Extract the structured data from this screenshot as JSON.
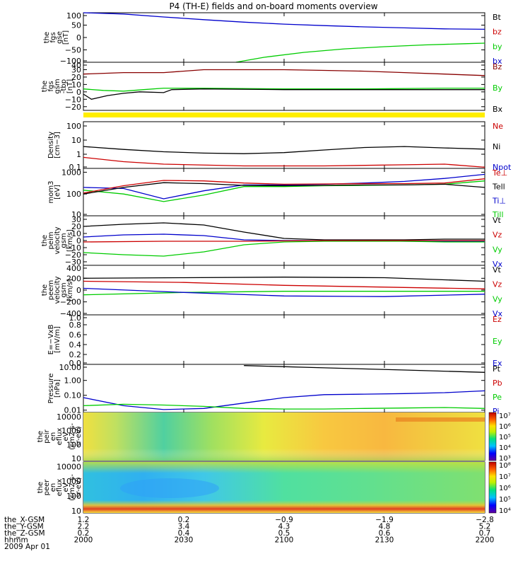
{
  "chart_data": {
    "type": "line",
    "title": "P4 (TH-E) fields and on-board moments overview",
    "time_axis": {
      "range": [
        "2000",
        "2200"
      ],
      "tick_labels": [
        "2000",
        "2030",
        "2100",
        "2130",
        "2200"
      ],
      "date": "2009 Apr 01"
    },
    "panels": [
      {
        "id": "fgs_gse",
        "ylabel": [
          "the",
          "fgs",
          "gse",
          "[nT]"
        ],
        "ticks": [
          "100",
          "50",
          "0",
          "−50",
          "−100"
        ],
        "ylim": [
          -100,
          100
        ],
        "legend": [
          {
            "name": "Bt",
            "color": "#000000"
          },
          {
            "name": "bz",
            "color": "#cc0000"
          },
          {
            "name": "by",
            "color": "#00cc00"
          },
          {
            "name": "bx",
            "color": "#0000cc"
          }
        ],
        "series": [
          {
            "name": "bx",
            "color": "#0000cc",
            "x": [
              0,
              0.1,
              0.2,
              0.3,
              0.4,
              0.5,
              0.6,
              0.7,
              0.8,
              0.9,
              1
            ],
            "y": [
              108,
              95,
              83,
              72,
              62,
              54,
              48,
              43,
              39,
              35,
              33
            ]
          },
          {
            "name": "by",
            "color": "#00cc00",
            "x": [
              0.38,
              0.45,
              0.55,
              0.65,
              0.75,
              0.85,
              0.95,
              1
            ],
            "y": [
              -100,
              -80,
              -60,
              -46,
              -37,
              -30,
              -25,
              -23
            ]
          }
        ]
      },
      {
        "id": "fgs_gsm",
        "ylabel": [
          "the",
          "fgs",
          "gsm",
          "-tbp",
          "[nT]"
        ],
        "ticks": [
          "40",
          "30",
          "20",
          "10",
          "0",
          "−10",
          "−20"
        ],
        "ylim": [
          -25,
          40
        ],
        "legend": [
          {
            "name": "Bz",
            "color": "#880000"
          },
          {
            "name": "By",
            "color": "#00cc00"
          },
          {
            "name": "Bx",
            "color": "#000000"
          }
        ],
        "series": [
          {
            "name": "Bz",
            "color": "#880000",
            "x": [
              0,
              0.1,
              0.2,
              0.3,
              0.4,
              0.5,
              0.6,
              0.7,
              0.8,
              0.9,
              1
            ],
            "y": [
              24,
              26,
              26,
              30,
              30,
              30,
              29,
              28,
              26,
              24,
              22
            ]
          },
          {
            "name": "By",
            "color": "#00cc00",
            "x": [
              0,
              0.05,
              0.1,
              0.15,
              0.2,
              0.3,
              0.5,
              0.7,
              0.9,
              1
            ],
            "y": [
              4,
              2,
              1,
              3,
              5,
              5,
              4,
              4,
              5,
              5
            ]
          },
          {
            "name": "Bx",
            "color": "#000000",
            "x": [
              0,
              0.02,
              0.06,
              0.1,
              0.14,
              0.2,
              0.22,
              0.3,
              0.5,
              0.7,
              0.9,
              1
            ],
            "y": [
              -3,
              -10,
              -5,
              -2,
              0,
              -1,
              3,
              4,
              3,
              3,
              3,
              3
            ]
          }
        ]
      },
      {
        "id": "density",
        "ylabel": [
          "Density",
          "[cm−3]"
        ],
        "ticks": [
          "100",
          "10",
          "1",
          "0.1"
        ],
        "ylim": [
          0.1,
          200
        ],
        "log": true,
        "legend": [
          {
            "name": "Ne",
            "color": "#cc0000"
          },
          {
            "name": "Ni",
            "color": "#000000"
          },
          {
            "name": "Npot",
            "color": "#0000cc"
          }
        ],
        "series": [
          {
            "name": "Ni",
            "color": "#000000",
            "x": [
              0,
              0.1,
              0.2,
              0.3,
              0.4,
              0.5,
              0.6,
              0.7,
              0.8,
              0.9,
              1
            ],
            "y": [
              3.5,
              2.2,
              1.5,
              1.2,
              1.1,
              1.3,
              2,
              3,
              3.5,
              2.8,
              2.3
            ]
          },
          {
            "name": "Ne",
            "color": "#cc0000",
            "x": [
              0,
              0.1,
              0.2,
              0.4,
              0.6,
              0.8,
              0.9,
              1
            ],
            "y": [
              0.6,
              0.3,
              0.2,
              0.15,
              0.15,
              0.18,
              0.2,
              0.12
            ]
          }
        ]
      },
      {
        "id": "temperature",
        "ylabel": [
          "mom3",
          "[eV]"
        ],
        "ticks": [
          "1000",
          "100",
          "10"
        ],
        "ylim": [
          10,
          1500
        ],
        "log": true,
        "legend": [
          {
            "name": "Te⊥",
            "color": "#cc0000"
          },
          {
            "name": "Tell",
            "color": "#000000"
          },
          {
            "name": "Ti⊥",
            "color": "#0000cc"
          },
          {
            "name": "Till",
            "color": "#00cc00"
          }
        ],
        "series": [
          {
            "name": "Ti⊥",
            "color": "#0000cc",
            "x": [
              0,
              0.1,
              0.2,
              0.3,
              0.4,
              0.5,
              0.6,
              0.7,
              0.8,
              0.9,
              1
            ],
            "y": [
              200,
              180,
              60,
              140,
              260,
              260,
              280,
              320,
              380,
              520,
              800
            ]
          },
          {
            "name": "Till",
            "color": "#00cc00",
            "x": [
              0,
              0.1,
              0.2,
              0.3,
              0.4,
              0.5,
              0.6,
              0.7,
              0.8,
              0.9,
              1
            ],
            "y": [
              150,
              100,
              45,
              90,
              220,
              220,
              240,
              250,
              260,
              280,
              400
            ]
          },
          {
            "name": "Te⊥",
            "color": "#cc0000",
            "x": [
              0,
              0.1,
              0.2,
              0.3,
              0.4,
              0.5,
              0.6,
              0.7,
              0.8,
              0.9,
              1
            ],
            "y": [
              110,
              240,
              420,
              400,
              320,
              280,
              290,
              300,
              300,
              320,
              500
            ]
          },
          {
            "name": "Tell",
            "color": "#000000",
            "x": [
              0,
              0.1,
              0.2,
              0.3,
              0.4,
              0.5,
              0.6,
              0.7,
              0.8,
              0.9,
              1
            ],
            "y": [
              100,
              200,
              330,
              300,
              250,
              240,
              250,
              260,
              260,
              280,
              200
            ]
          }
        ]
      },
      {
        "id": "peim_velocity",
        "ylabel": [
          "the",
          "peim",
          "velocity",
          "gsm",
          "[km/s]"
        ],
        "ticks": [
          "30",
          "20",
          "10",
          "0",
          "−10",
          "−20",
          "−30"
        ],
        "ylim": [
          -35,
          35
        ],
        "legend": [
          {
            "name": "Vt",
            "color": "#000000"
          },
          {
            "name": "Vz",
            "color": "#cc0000"
          },
          {
            "name": "Vy",
            "color": "#00cc00"
          },
          {
            "name": "Vx",
            "color": "#0000cc"
          }
        ],
        "series": [
          {
            "name": "Vt",
            "color": "#000000",
            "x": [
              0,
              0.1,
              0.2,
              0.3,
              0.4,
              0.5,
              0.6,
              0.7,
              0.8,
              0.9,
              1
            ],
            "y": [
              20,
              23,
              25,
              22,
              12,
              3,
              1,
              1,
              1,
              2,
              2
            ]
          },
          {
            "name": "Vx",
            "color": "#0000cc",
            "x": [
              0,
              0.1,
              0.2,
              0.3,
              0.4,
              0.5,
              0.6,
              0.7,
              0.8,
              0.9,
              1
            ],
            "y": [
              5,
              8,
              9,
              7,
              1,
              0,
              0,
              0,
              -1,
              -1,
              -1
            ]
          },
          {
            "name": "Vy",
            "color": "#00cc00",
            "x": [
              0,
              0.1,
              0.2,
              0.3,
              0.4,
              0.5,
              0.6,
              0.7,
              0.8,
              0.9,
              1
            ],
            "y": [
              -17,
              -20,
              -22,
              -16,
              -6,
              -2,
              -1,
              -1,
              -1,
              -2,
              -2
            ]
          },
          {
            "name": "Vz",
            "color": "#cc0000",
            "x": [
              0,
              0.2,
              0.4,
              0.6,
              0.8,
              1
            ],
            "y": [
              -2,
              -1,
              -1,
              0,
              0,
              0
            ]
          }
        ]
      },
      {
        "id": "peem_velocity",
        "ylabel": [
          "the",
          "peem",
          "velocity",
          "gsm",
          "[km/s]"
        ],
        "ticks": [
          "400",
          "200",
          "0",
          "−200",
          "−400"
        ],
        "ylim": [
          -420,
          420
        ],
        "legend": [
          {
            "name": "Vt",
            "color": "#000000"
          },
          {
            "name": "Vz",
            "color": "#cc0000"
          },
          {
            "name": "Vy",
            "color": "#00cc00"
          },
          {
            "name": "Vx",
            "color": "#0000cc"
          }
        ],
        "series": [
          {
            "name": "Vt",
            "color": "#000000",
            "x": [
              0,
              0.25,
              0.5,
              0.75,
              1
            ],
            "y": [
              200,
              210,
              220,
              210,
              150
            ]
          },
          {
            "name": "Vz",
            "color": "#cc0000",
            "x": [
              0,
              0.25,
              0.5,
              0.75,
              1
            ],
            "y": [
              150,
              130,
              80,
              50,
              20
            ]
          },
          {
            "name": "Vy",
            "color": "#00cc00",
            "x": [
              0,
              0.25,
              0.5,
              0.75,
              1
            ],
            "y": [
              -80,
              -40,
              -20,
              -20,
              -20
            ]
          },
          {
            "name": "Vx",
            "color": "#0000cc",
            "x": [
              0,
              0.25,
              0.5,
              0.75,
              1
            ],
            "y": [
              30,
              -40,
              -100,
              -110,
              -70
            ]
          }
        ]
      },
      {
        "id": "e_field",
        "ylabel": [
          "E=−VxB",
          "[mV/m]"
        ],
        "ticks": [
          "1.0",
          "0.8",
          "0.6",
          "0.4",
          "0.2",
          "0.0"
        ],
        "ylim": [
          0,
          1
        ],
        "legend": [
          {
            "name": "Ez",
            "color": "#cc0000"
          },
          {
            "name": "Ey",
            "color": "#00cc00"
          },
          {
            "name": "Ex",
            "color": "#0000cc"
          }
        ],
        "series": []
      },
      {
        "id": "pressure",
        "ylabel": [
          "Pressure",
          "[nPa]"
        ],
        "ticks": [
          "10.00",
          "1.00",
          "0.10",
          "0.01"
        ],
        "ylim": [
          0.007,
          12
        ],
        "log": true,
        "legend": [
          {
            "name": "Pt",
            "color": "#000000"
          },
          {
            "name": "Pb",
            "color": "#cc0000"
          },
          {
            "name": "Pe",
            "color": "#00cc00"
          },
          {
            "name": "Pi",
            "color": "#0000cc"
          }
        ],
        "series": [
          {
            "name": "Pt",
            "color": "#000000",
            "x": [
              0.4,
              0.6,
              0.8,
              1
            ],
            "y": [
              10,
              7,
              5,
              3.5
            ]
          },
          {
            "name": "Pi",
            "color": "#0000cc",
            "x": [
              0,
              0.1,
              0.2,
              0.3,
              0.4,
              0.5,
              0.6,
              0.7,
              0.8,
              0.9,
              1
            ],
            "y": [
              0.07,
              0.02,
              0.011,
              0.013,
              0.03,
              0.07,
              0.11,
              0.12,
              0.13,
              0.15,
              0.2
            ]
          },
          {
            "name": "Pe",
            "color": "#00cc00",
            "x": [
              0,
              0.1,
              0.2,
              0.3,
              0.4,
              0.5,
              0.6,
              0.7,
              0.8,
              0.9,
              1
            ],
            "y": [
              0.02,
              0.025,
              0.022,
              0.018,
              0.013,
              0.012,
              0.012,
              0.013,
              0.014,
              0.015,
              0.013
            ]
          }
        ]
      },
      {
        "id": "peir_spec",
        "type": "heatmap",
        "ylabel": [
          "the",
          "peir",
          "en",
          "eflux",
          "eV",
          "(cm2-s-",
          "sr-eV)"
        ],
        "ticks": [
          "10000",
          "1000",
          "100",
          "10"
        ],
        "colorbar_ticks": [
          "10⁷",
          "10⁶",
          "10⁵",
          "10⁴",
          "10³"
        ]
      },
      {
        "id": "peer_spec",
        "type": "heatmap",
        "ylabel": [
          "the",
          "peer",
          "en",
          "eflux",
          "eV",
          "(cm2-s-",
          "sr-eV)"
        ],
        "ticks": [
          "10000",
          "1000",
          "100",
          "10"
        ],
        "colorbar_ticks": [
          "10⁸",
          "10⁷",
          "10⁶",
          "10⁵",
          "10⁴"
        ]
      }
    ],
    "orbit": {
      "rows": [
        {
          "label": "the_X-GSM",
          "values": [
            "1.2",
            "0.2",
            "−0.9",
            "−1.9",
            "−2.8"
          ]
        },
        {
          "label": "the_Y-GSM",
          "values": [
            "2.2",
            "3.4",
            "4.3",
            "4.8",
            "5.2"
          ]
        },
        {
          "label": "the_Z-GSM",
          "values": [
            "0.2",
            "0.4",
            "0.5",
            "0.6",
            "0.7"
          ]
        },
        {
          "label": "hhmm",
          "values": [
            "2000",
            "2030",
            "2100",
            "2130",
            "2200"
          ]
        }
      ]
    }
  }
}
